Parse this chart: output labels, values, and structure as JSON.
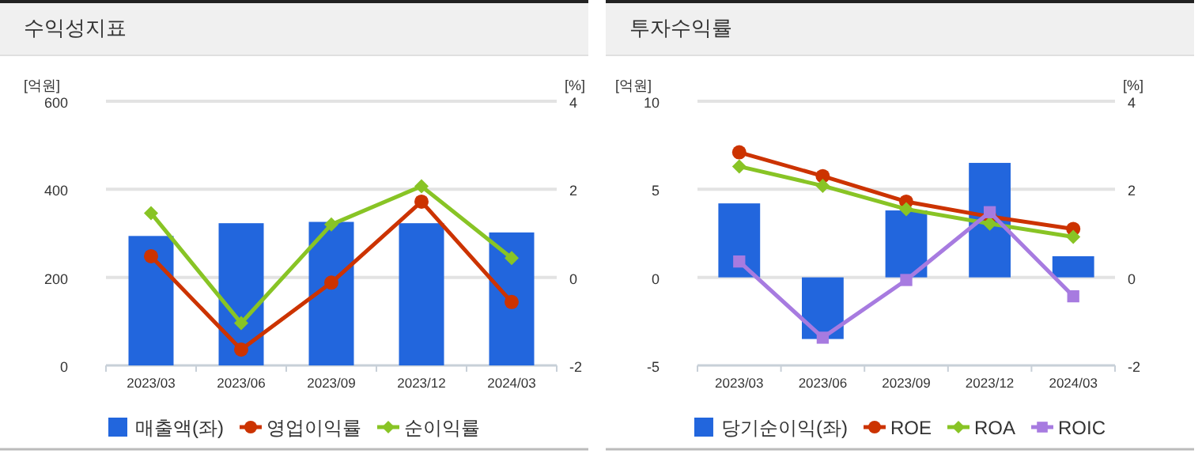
{
  "chart_data": [
    {
      "type": "bar",
      "title": "수익성지표",
      "ylabel": "[억원]",
      "y2label": "[%]",
      "categories": [
        "2023/03",
        "2023/06",
        "2023/09",
        "2023/12",
        "2024/03"
      ],
      "ylim": [
        0,
        600
      ],
      "yticks": [
        0,
        200,
        400,
        600
      ],
      "y2lim": [
        -2,
        4
      ],
      "y2ticks": [
        -2,
        0,
        2,
        4
      ],
      "grid": "y",
      "legend": "bottom",
      "series": [
        {
          "name": "매출액(좌)",
          "color": "#2266dd",
          "values": [
            294,
            323,
            326,
            323,
            302
          ]
        },
        {
          "name": "영업이익률",
          "type": "line",
          "axis": "y2",
          "marker": "circle",
          "color": "#cc3300",
          "values": [
            0.48,
            -1.64,
            -0.12,
            1.72,
            -0.56
          ]
        },
        {
          "name": "순이익률",
          "type": "line",
          "axis": "y2",
          "marker": "diamond",
          "color": "#88c425",
          "values": [
            1.46,
            -1.04,
            1.2,
            2.07,
            0.44
          ]
        }
      ]
    },
    {
      "type": "bar",
      "title": "투자수익률",
      "ylabel": "[억원]",
      "y2label": "[%]",
      "categories": [
        "2023/03",
        "2023/06",
        "2023/09",
        "2023/12",
        "2024/03"
      ],
      "ylim": [
        -5,
        10
      ],
      "yticks": [
        -5,
        0,
        5,
        10
      ],
      "y2lim": [
        -2,
        4
      ],
      "y2ticks": [
        -2,
        0,
        2,
        4
      ],
      "grid": "y",
      "legend": "bottom",
      "series": [
        {
          "name": "당기순이익(좌)",
          "color": "#2266dd",
          "values": [
            4.2,
            -3.5,
            3.8,
            6.5,
            1.2
          ]
        },
        {
          "name": "ROE",
          "type": "line",
          "axis": "y2",
          "marker": "circle",
          "color": "#cc3300",
          "values": [
            2.84,
            2.3,
            1.72,
            1.38,
            1.1
          ]
        },
        {
          "name": "ROA",
          "type": "line",
          "axis": "y2",
          "marker": "diamond",
          "color": "#88c425",
          "values": [
            2.52,
            2.08,
            1.55,
            1.22,
            0.92
          ]
        },
        {
          "name": "ROIC",
          "type": "line",
          "axis": "y2",
          "marker": "square",
          "color": "#a77be0",
          "values": [
            0.36,
            -1.37,
            -0.06,
            1.48,
            -0.43
          ]
        }
      ]
    }
  ]
}
